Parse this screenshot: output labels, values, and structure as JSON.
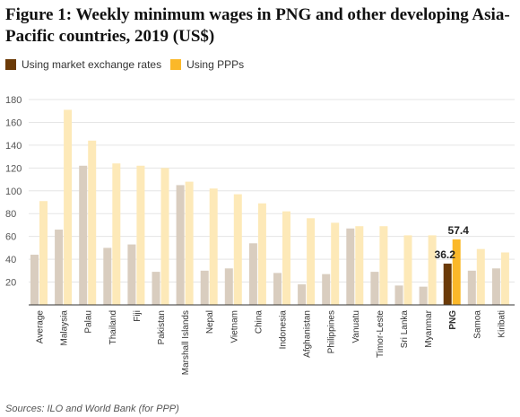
{
  "page": {
    "title": "Figure 1: Weekly minimum wages in PNG and other developing Asia-Pacific countries, 2019 (US$)",
    "source": "Sources: ILO and World Bank (for PPP)"
  },
  "colors": {
    "market_faded": "#d9cdbf",
    "ppp_faded": "#fde9b8",
    "market_highlight": "#6b3a07",
    "ppp_highlight": "#fbb829",
    "grid": "#e5e5e5",
    "axis": "#333333",
    "tick_text": "#555555"
  },
  "chart_data": {
    "type": "bar",
    "categories": [
      "Average",
      "Malaysia",
      "Palau",
      "Thailand",
      "Fiji",
      "Pakistan",
      "Marshall Islands",
      "Nepal",
      "Vietnam",
      "China",
      "Indonesia",
      "Afghanistan",
      "Philippines",
      "Vanuatu",
      "Timor-Leste",
      "Sri Lanka",
      "Myanmar",
      "PNG",
      "Samoa",
      "Kiribati"
    ],
    "series": [
      {
        "name": "Using market exchange rates",
        "values": [
          44,
          66,
          122,
          50,
          53,
          29,
          105,
          30,
          32,
          54,
          28,
          18,
          27,
          67,
          29,
          17,
          16,
          36.2,
          30,
          32
        ]
      },
      {
        "name": "Using PPPs",
        "values": [
          91,
          171,
          144,
          124,
          122,
          120,
          108,
          102,
          97,
          89,
          82,
          76,
          72,
          69,
          69,
          61,
          61,
          57.4,
          49,
          46
        ]
      }
    ],
    "highlight_category": "PNG",
    "data_labels": [
      {
        "category": "PNG",
        "series": 0,
        "text": "36.2"
      },
      {
        "category": "PNG",
        "series": 1,
        "text": "57.4"
      }
    ],
    "ylim": [
      0,
      180
    ],
    "yticks": [
      20,
      40,
      60,
      80,
      100,
      120,
      140,
      160,
      180
    ],
    "grid": true,
    "legend": "top-left"
  }
}
